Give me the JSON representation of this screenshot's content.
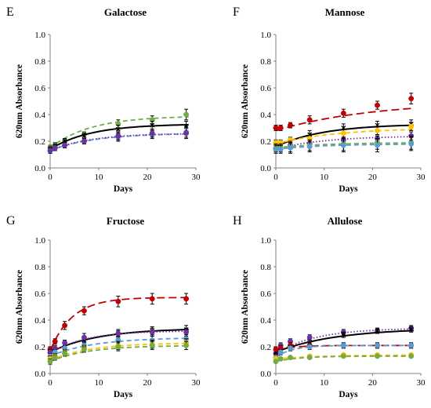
{
  "colors": {
    "black": "#000000",
    "red": "#c00000",
    "green": "#70ad47",
    "blue": "#5b9bd5",
    "yellow": "#ffc000",
    "purple": "#7030a0"
  },
  "chart_data": [
    {
      "type": "scatter",
      "panel": "E",
      "title": "Galactose",
      "xlabel": "Days",
      "ylabel": "620nm Absorbance",
      "xlim": [
        0,
        30
      ],
      "ylim": [
        0,
        1.0
      ],
      "xticks": [
        "0",
        "10",
        "20",
        "30"
      ],
      "yticks": [
        "0.0",
        "0.2",
        "0.4",
        "0.6",
        "0.8",
        "1.0"
      ],
      "grid": false,
      "series": [
        {
          "color": "green",
          "dash": "dash",
          "x": [
            0,
            1,
            3,
            7,
            14,
            21,
            28
          ],
          "y": [
            0.15,
            0.17,
            0.2,
            0.25,
            0.33,
            0.36,
            0.4
          ],
          "err": [
            0.02,
            0.02,
            0.02,
            0.02,
            0.03,
            0.03,
            0.04
          ],
          "fit": [
            0.15,
            0.39,
            0.12
          ]
        },
        {
          "color": "black",
          "dash": "solid",
          "x": [
            0,
            1,
            3,
            7,
            14,
            21,
            28
          ],
          "y": [
            0.14,
            0.16,
            0.2,
            0.24,
            0.29,
            0.32,
            0.31
          ],
          "err": [
            0.02,
            0.02,
            0.02,
            0.02,
            0.03,
            0.03,
            0.04
          ],
          "fit": [
            0.14,
            0.33,
            0.12
          ]
        },
        {
          "color": "blue",
          "dash": "dash",
          "x": [
            0,
            1,
            3,
            7,
            14,
            21,
            28
          ],
          "y": [
            0.13,
            0.15,
            0.17,
            0.2,
            0.23,
            0.25,
            0.27
          ],
          "err": [
            0.02,
            0.02,
            0.02,
            0.02,
            0.03,
            0.03,
            0.04
          ],
          "fit": [
            0.13,
            0.26,
            0.11
          ]
        },
        {
          "color": "purple",
          "dash": "dot",
          "x": [
            0,
            1,
            3,
            7,
            14,
            21,
            28
          ],
          "y": [
            0.13,
            0.15,
            0.17,
            0.2,
            0.24,
            0.26,
            0.26
          ],
          "err": [
            0.02,
            0.02,
            0.02,
            0.02,
            0.03,
            0.03,
            0.04
          ],
          "fit": [
            0.13,
            0.26,
            0.12
          ]
        }
      ]
    },
    {
      "type": "scatter",
      "panel": "F",
      "title": "Mannose",
      "xlabel": "Days",
      "ylabel": "620nm Absorbance",
      "xlim": [
        0,
        30
      ],
      "ylim": [
        0,
        1.0
      ],
      "xticks": [
        "0",
        "10",
        "20",
        "30"
      ],
      "yticks": [
        "0.0",
        "0.2",
        "0.4",
        "0.6",
        "0.8",
        "1.0"
      ],
      "grid": false,
      "series": [
        {
          "color": "red",
          "dash": "longdash",
          "x": [
            0,
            1,
            3,
            7,
            14,
            21,
            28
          ],
          "y": [
            0.3,
            0.3,
            0.32,
            0.36,
            0.41,
            0.47,
            0.52
          ],
          "err": [
            0.02,
            0.02,
            0.02,
            0.03,
            0.03,
            0.03,
            0.04
          ],
          "fit": [
            0.28,
            0.5,
            0.05
          ]
        },
        {
          "color": "black",
          "dash": "solid",
          "x": [
            0,
            1,
            3,
            7,
            14,
            21,
            28
          ],
          "y": [
            0.16,
            0.18,
            0.2,
            0.25,
            0.3,
            0.32,
            0.33
          ],
          "err": [
            0.02,
            0.02,
            0.02,
            0.03,
            0.03,
            0.03,
            0.03
          ],
          "fit": [
            0.16,
            0.33,
            0.1
          ]
        },
        {
          "color": "yellow",
          "dash": "dash",
          "x": [
            0,
            1,
            3,
            7,
            14,
            21,
            28
          ],
          "y": [
            0.19,
            0.19,
            0.21,
            0.22,
            0.26,
            0.28,
            0.31
          ],
          "err": [
            0.02,
            0.02,
            0.02,
            0.02,
            0.03,
            0.03,
            0.03
          ],
          "fit": [
            0.18,
            0.3,
            0.08
          ]
        },
        {
          "color": "purple",
          "dash": "dot",
          "x": [
            0,
            1,
            3,
            7,
            14,
            21,
            28
          ],
          "y": [
            0.14,
            0.15,
            0.17,
            0.18,
            0.21,
            0.22,
            0.24
          ],
          "err": [
            0.02,
            0.02,
            0.02,
            0.02,
            0.02,
            0.02,
            0.03
          ],
          "fit": [
            0.14,
            0.24,
            0.1
          ]
        },
        {
          "color": "green",
          "dash": "dash",
          "x": [
            0,
            1,
            3,
            7,
            14,
            21,
            28
          ],
          "y": [
            0.15,
            0.15,
            0.16,
            0.17,
            0.18,
            0.19,
            0.19
          ],
          "err": [
            0.03,
            0.03,
            0.04,
            0.04,
            0.05,
            0.05,
            0.05
          ],
          "fit": [
            0.15,
            0.19,
            0.1
          ]
        },
        {
          "color": "blue",
          "dash": "dash",
          "x": [
            0,
            1,
            3,
            7,
            14,
            21,
            28
          ],
          "y": [
            0.14,
            0.14,
            0.15,
            0.16,
            0.17,
            0.17,
            0.18
          ],
          "err": [
            0.03,
            0.03,
            0.04,
            0.04,
            0.05,
            0.05,
            0.05
          ],
          "fit": [
            0.14,
            0.18,
            0.1
          ]
        }
      ]
    },
    {
      "type": "scatter",
      "panel": "G",
      "title": "Fructose",
      "xlabel": "Days",
      "ylabel": "620nm Absorbance",
      "xlim": [
        0,
        30
      ],
      "ylim": [
        0,
        1.0
      ],
      "xticks": [
        "0",
        "10",
        "20",
        "30"
      ],
      "yticks": [
        "0.0",
        "0.2",
        "0.4",
        "0.6",
        "0.8",
        "1.0"
      ],
      "grid": false,
      "series": [
        {
          "color": "red",
          "dash": "longdash",
          "x": [
            0,
            1,
            3,
            7,
            14,
            21,
            28
          ],
          "y": [
            0.18,
            0.24,
            0.36,
            0.47,
            0.54,
            0.56,
            0.56
          ],
          "err": [
            0.02,
            0.02,
            0.03,
            0.03,
            0.04,
            0.04,
            0.04
          ],
          "fit": [
            0.17,
            0.57,
            0.22
          ]
        },
        {
          "color": "black",
          "dash": "solid",
          "x": [
            0,
            1,
            3,
            7,
            14,
            21,
            28
          ],
          "y": [
            0.16,
            0.18,
            0.22,
            0.25,
            0.29,
            0.32,
            0.33
          ],
          "err": [
            0.02,
            0.02,
            0.02,
            0.02,
            0.03,
            0.03,
            0.03
          ],
          "fit": [
            0.16,
            0.34,
            0.1
          ]
        },
        {
          "color": "purple",
          "dash": "dot",
          "x": [
            0,
            1,
            3,
            7,
            14,
            21,
            28
          ],
          "y": [
            0.16,
            0.19,
            0.23,
            0.27,
            0.3,
            0.31,
            0.31
          ],
          "err": [
            0.02,
            0.02,
            0.02,
            0.03,
            0.03,
            0.03,
            0.03
          ],
          "fit": [
            0.15,
            0.32,
            0.14
          ]
        },
        {
          "color": "blue",
          "dash": "dash",
          "x": [
            0,
            1,
            3,
            7,
            14,
            21,
            28
          ],
          "y": [
            0.13,
            0.16,
            0.19,
            0.21,
            0.25,
            0.25,
            0.26
          ],
          "err": [
            0.02,
            0.02,
            0.02,
            0.02,
            0.03,
            0.03,
            0.03
          ],
          "fit": [
            0.13,
            0.27,
            0.11
          ]
        },
        {
          "color": "yellow",
          "dash": "dash",
          "x": [
            0,
            1,
            3,
            7,
            14,
            21,
            28
          ],
          "y": [
            0.11,
            0.13,
            0.16,
            0.19,
            0.21,
            0.22,
            0.23
          ],
          "err": [
            0.02,
            0.02,
            0.02,
            0.02,
            0.03,
            0.03,
            0.03
          ],
          "fit": [
            0.1,
            0.23,
            0.12
          ]
        },
        {
          "color": "green",
          "dash": "dash",
          "x": [
            0,
            1,
            3,
            7,
            14,
            21,
            28
          ],
          "y": [
            0.09,
            0.12,
            0.15,
            0.18,
            0.2,
            0.21,
            0.21
          ],
          "err": [
            0.02,
            0.02,
            0.02,
            0.02,
            0.03,
            0.03,
            0.03
          ],
          "fit": [
            0.09,
            0.21,
            0.13
          ]
        }
      ]
    },
    {
      "type": "scatter",
      "panel": "H",
      "title": "Allulose",
      "xlabel": "Days",
      "ylabel": "620nm Absorbance",
      "xlim": [
        0,
        30
      ],
      "ylim": [
        0,
        1.0
      ],
      "xticks": [
        "0",
        "10",
        "20",
        "30"
      ],
      "yticks": [
        "0.0",
        "0.2",
        "0.4",
        "0.6",
        "0.8",
        "1.0"
      ],
      "grid": false,
      "series": [
        {
          "color": "purple",
          "dash": "dot",
          "x": [
            0,
            1,
            3,
            7,
            14,
            21,
            28
          ],
          "y": [
            0.15,
            0.21,
            0.24,
            0.27,
            0.31,
            0.32,
            0.34
          ],
          "err": [
            0.02,
            0.02,
            0.02,
            0.02,
            0.02,
            0.02,
            0.02
          ],
          "fit": [
            0.15,
            0.34,
            0.12
          ]
        },
        {
          "color": "black",
          "dash": "solid",
          "x": [
            0,
            1,
            3,
            7,
            14,
            21,
            28
          ],
          "y": [
            0.16,
            0.18,
            0.2,
            0.23,
            0.29,
            0.32,
            0.33
          ],
          "err": [
            0.02,
            0.02,
            0.02,
            0.02,
            0.02,
            0.02,
            0.02
          ],
          "fit": [
            0.16,
            0.34,
            0.08
          ]
        },
        {
          "color": "red",
          "dash": "longdash",
          "x": [
            0,
            1,
            3,
            7,
            14,
            21,
            28
          ],
          "y": [
            0.18,
            0.19,
            0.21,
            0.21,
            0.21,
            0.21,
            0.21
          ],
          "err": [
            0.02,
            0.02,
            0.02,
            0.02,
            0.02,
            0.02,
            0.02
          ],
          "fit": [
            0.17,
            0.21,
            0.3
          ]
        },
        {
          "color": "blue",
          "dash": "dash",
          "x": [
            0,
            1,
            3,
            7,
            14,
            21,
            28
          ],
          "y": [
            0.12,
            0.16,
            0.19,
            0.2,
            0.21,
            0.21,
            0.21
          ],
          "err": [
            0.02,
            0.02,
            0.02,
            0.02,
            0.02,
            0.02,
            0.02
          ],
          "fit": [
            0.12,
            0.21,
            0.3
          ]
        },
        {
          "color": "yellow",
          "dash": "dash",
          "x": [
            0,
            1,
            3,
            7,
            14,
            21,
            28
          ],
          "y": [
            0.11,
            0.11,
            0.12,
            0.13,
            0.14,
            0.14,
            0.14
          ],
          "err": [
            0.01,
            0.01,
            0.01,
            0.01,
            0.01,
            0.01,
            0.01
          ],
          "fit": [
            0.11,
            0.14,
            0.1
          ]
        },
        {
          "color": "green",
          "dash": "dash",
          "x": [
            0,
            1,
            3,
            7,
            14,
            21,
            28
          ],
          "y": [
            0.09,
            0.11,
            0.12,
            0.12,
            0.13,
            0.13,
            0.13
          ],
          "err": [
            0.01,
            0.01,
            0.01,
            0.01,
            0.01,
            0.01,
            0.01
          ],
          "fit": [
            0.09,
            0.13,
            0.2
          ]
        }
      ]
    }
  ]
}
